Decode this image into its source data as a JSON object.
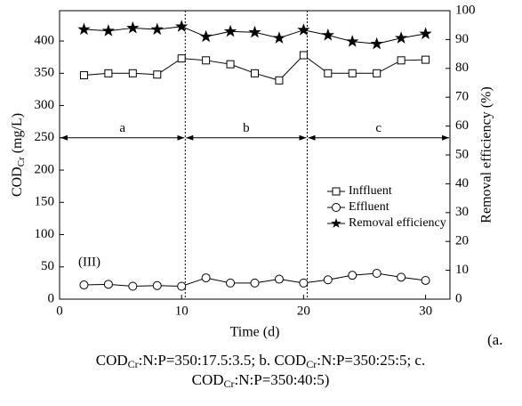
{
  "chart_data": {
    "type": "line",
    "x_label": "Time (d)",
    "y_label": [
      "COD",
      "Cr",
      " (mg/L)"
    ],
    "y2_label": "Removal efficiency (%)",
    "annotation": "(III)",
    "x": [
      2,
      4,
      6,
      8,
      10,
      12,
      14,
      16,
      18,
      20,
      22,
      24,
      26,
      28,
      30
    ],
    "series": [
      {
        "name": "Inffluent",
        "color": "#000000",
        "marker": "square",
        "values": [
          347,
          350,
          350,
          348,
          373,
          370,
          364,
          350,
          339,
          378,
          350,
          350,
          350,
          370,
          371
        ]
      },
      {
        "name": "Effluent",
        "color": "#000000",
        "marker": "circle",
        "values": [
          22,
          23,
          20,
          21,
          20,
          33,
          25,
          25,
          31,
          25,
          30,
          37,
          40,
          34,
          29
        ]
      },
      {
        "name": "Removal efficiency",
        "color": "#000000",
        "marker": "star",
        "axis": "y2",
        "values": [
          93.5,
          93,
          94,
          93.5,
          94.5,
          91,
          92.8,
          92.5,
          90.5,
          93.3,
          91.5,
          89.3,
          88.5,
          90.5,
          92
        ]
      }
    ],
    "phases": [
      {
        "label": "a",
        "start": 0,
        "end": 10.3
      },
      {
        "label": "b",
        "start": 10.3,
        "end": 20.3
      },
      {
        "label": "c",
        "start": 20.3,
        "end": 32
      }
    ],
    "xlim": [
      0,
      32
    ],
    "xticks": [
      0,
      10,
      20,
      30
    ],
    "ylim": [
      0,
      447
    ],
    "yticks": [
      0,
      50,
      100,
      150,
      200,
      250,
      300,
      350,
      400
    ],
    "y2lim": [
      0,
      100
    ],
    "y2ticks": [
      0,
      10,
      20,
      30,
      40,
      50,
      60,
      70,
      80,
      90,
      100
    ],
    "legend": "right",
    "caption": [
      [
        "(a."
      ],
      [
        "COD",
        "Cr",
        ":N:P=350:17.5:3.5; b. COD",
        "Cr",
        ":N:P=350:25:5; c."
      ],
      [
        "COD",
        "Cr",
        ":N:P=350:40:5)"
      ]
    ]
  }
}
